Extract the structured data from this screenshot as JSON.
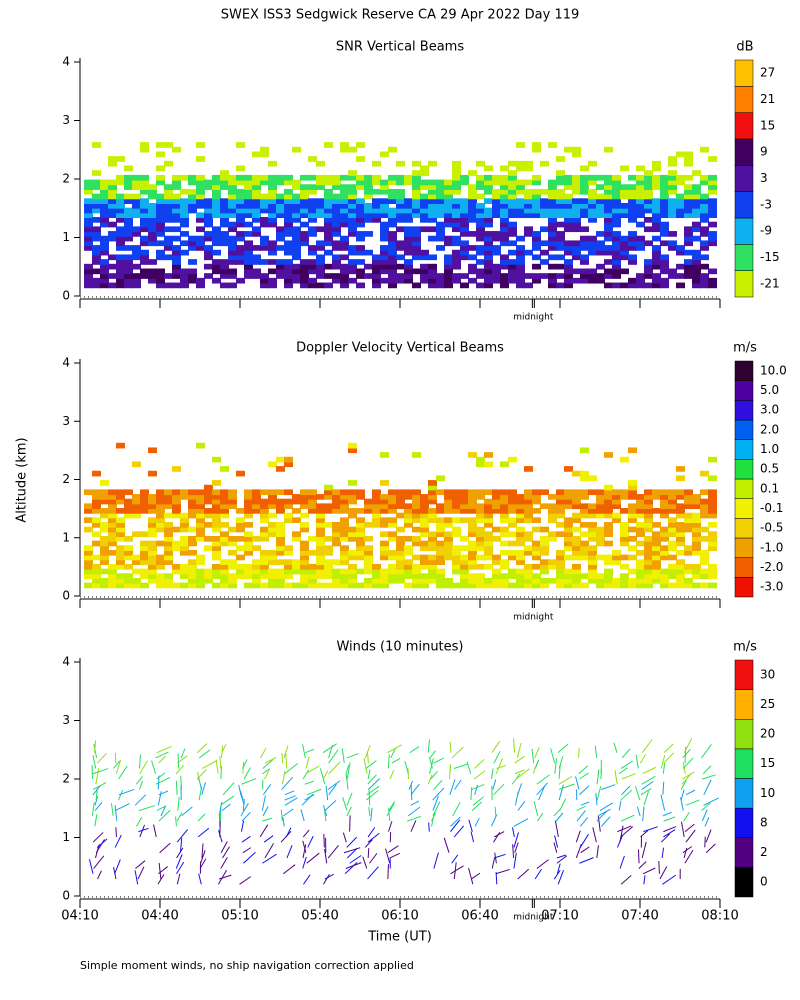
{
  "title": "SWEX ISS3 Sedgwick Reserve CA  29 Apr 2022 Day 119",
  "y_axis_label": "Altitude (km)",
  "x_axis_label": "Time (UT)",
  "footnote": "Simple moment winds, no ship navigation correction applied",
  "midnight_label": "midnight",
  "midnight_x": 170,
  "xlim": [
    0,
    240
  ],
  "xticks": [
    {
      "value": 0,
      "label": "04:10"
    },
    {
      "value": 30,
      "label": "04:40"
    },
    {
      "value": 60,
      "label": "05:10"
    },
    {
      "value": 90,
      "label": "05:40"
    },
    {
      "value": 120,
      "label": "06:10"
    },
    {
      "value": 150,
      "label": "06:40"
    },
    {
      "value": 180,
      "label": "07:10"
    },
    {
      "value": 210,
      "label": "07:40"
    },
    {
      "value": 240,
      "label": "08:10"
    }
  ],
  "ylim": [
    0,
    4
  ],
  "yticks": [
    0,
    1,
    2,
    3,
    4
  ],
  "panels": [
    {
      "title": "SNR Vertical Beams",
      "unit": "dB",
      "colorbar": {
        "ticks": [
          -21,
          -15,
          -9,
          -3,
          3,
          9,
          15,
          21,
          27
        ],
        "colors": [
          "#c8f000",
          "#30e060",
          "#10b0f0",
          "#1040f0",
          "#5010a0",
          "#400060",
          "#f01010",
          "#ff8000",
          "#ffc000"
        ]
      }
    },
    {
      "title": "Doppler Velocity Vertical Beams",
      "unit": "m/s",
      "colorbar": {
        "ticks": [
          {
            "value": -3,
            "label": "-3.0"
          },
          {
            "value": -2,
            "label": "-2.0"
          },
          {
            "value": -1,
            "label": "-1.0"
          },
          -0.5,
          -0.1,
          0.1,
          0.5,
          {
            "value": 1,
            "label": "1.0"
          },
          {
            "value": 2,
            "label": "2.0"
          },
          {
            "value": 3,
            "label": "3.0"
          },
          {
            "value": 5,
            "label": "5.0"
          },
          {
            "value": 10,
            "label": "10.0"
          }
        ],
        "colors": [
          "#f01000",
          "#f06000",
          "#f0a000",
          "#f0d000",
          "#f0f000",
          "#c0f000",
          "#20e040",
          "#00b0f0",
          "#0060f0",
          "#3010e0",
          "#5000a0",
          "#300030"
        ]
      }
    },
    {
      "title": "Winds (10 minutes)",
      "unit": "m/s",
      "colorbar": {
        "ticks": [
          0,
          2,
          8,
          10,
          15,
          20,
          25,
          30
        ],
        "colors": [
          "#000000",
          "#500080",
          "#1010f0",
          "#10a0f0",
          "#20e060",
          "#90e010",
          "#ffb000",
          "#f01010"
        ]
      }
    }
  ]
}
